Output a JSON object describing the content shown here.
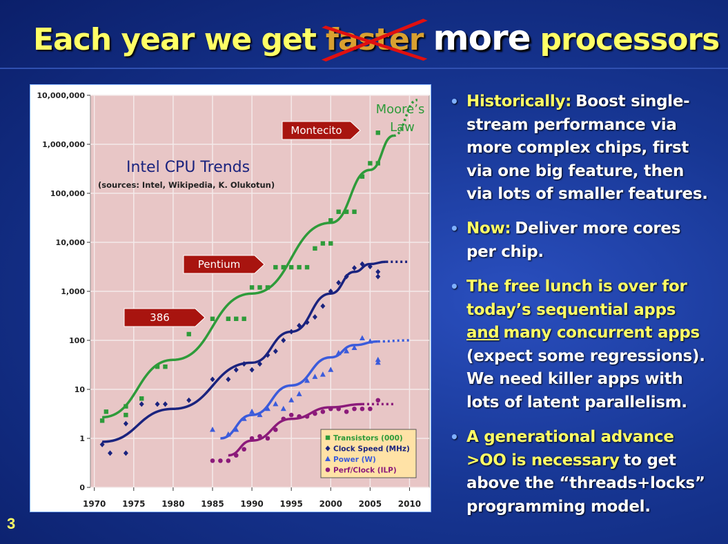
{
  "slide": {
    "title": [
      {
        "text": "Each year we get",
        "color": "#ffff66"
      },
      {
        "text": "faster",
        "color": "#d9a030",
        "struck": true
      },
      {
        "text": "more",
        "color": "#ffffff",
        "big": true
      },
      {
        "text": "processors",
        "color": "#ffff66"
      }
    ],
    "page_number": "3",
    "bullets": [
      {
        "lines": [
          [
            {
              "text": "Historically:",
              "color": "#ffff66"
            },
            {
              "text": "Boost single-",
              "color": "#ffffff"
            }
          ],
          [
            {
              "text": "stream performance via",
              "color": "#ffffff"
            }
          ],
          [
            {
              "text": "more complex chips, first",
              "color": "#ffffff"
            }
          ],
          [
            {
              "text": "via one big feature, then",
              "color": "#ffffff"
            }
          ],
          [
            {
              "text": "via lots of smaller features.",
              "color": "#ffffff"
            }
          ]
        ]
      },
      {
        "lines": [
          [
            {
              "text": "Now:",
              "color": "#ffff66"
            },
            {
              "text": "Deliver more cores",
              "color": "#ffffff"
            }
          ],
          [
            {
              "text": "per chip.",
              "color": "#ffffff"
            }
          ]
        ]
      },
      {
        "lines": [
          [
            {
              "text": "The free lunch is over for",
              "color": "#ffff66"
            }
          ],
          [
            {
              "text": "today’s sequential apps",
              "color": "#ffff66"
            }
          ],
          [
            {
              "text": "and",
              "color": "#ffff66",
              "underline": true
            },
            {
              "text": "many concurrent apps",
              "color": "#ffff66"
            }
          ],
          [
            {
              "text": "(expect some regressions).",
              "color": "#ffffff"
            }
          ],
          [
            {
              "text": "We need killer apps with",
              "color": "#ffffff"
            }
          ],
          [
            {
              "text": "lots of latent parallelism.",
              "color": "#ffffff"
            }
          ]
        ]
      },
      {
        "lines": [
          [
            {
              "text": "A generational advance",
              "color": "#ffff66"
            }
          ],
          [
            {
              "text": ">OO is necessary",
              "color": "#ffff66"
            },
            {
              "text": "to get",
              "color": "#ffffff"
            }
          ],
          [
            {
              "text": "above the “threads+locks”",
              "color": "#ffffff"
            }
          ],
          [
            {
              "text": "programming model.",
              "color": "#ffffff"
            }
          ]
        ]
      }
    ]
  },
  "chart_data": {
    "type": "scatter",
    "title": "Intel CPU Trends",
    "subtitle": "(sources: Intel, Wikipedia, K. Olukotun)",
    "log_scale_y": true,
    "grid": true,
    "legend": "lower right",
    "xlim": [
      1969.5,
      2012.5
    ],
    "xticks": [
      1970,
      1975,
      1980,
      1985,
      1990,
      1995,
      2000,
      2005,
      2010
    ],
    "ylim": [
      0.1,
      10000000
    ],
    "yticks": [
      {
        "value": 0.1,
        "label": "0"
      },
      1,
      10,
      100,
      {
        "value": 1000,
        "label": "1,000"
      },
      {
        "value": 10000,
        "label": "10,000"
      },
      {
        "value": 100000,
        "label": "100,000"
      },
      {
        "value": 1000000,
        "label": "1,000,000"
      },
      {
        "value": 10000000,
        "label": "10,000,000"
      }
    ],
    "annotations": {
      "moores_law": [
        "Moore’s",
        "Law"
      ],
      "arrows": [
        "Montecito",
        "Pentium",
        "386"
      ]
    },
    "series": [
      {
        "name": "Transistors (000)",
        "color": "#2e9b3a",
        "marker": "square",
        "x": [
          1971,
          1971.5,
          1974,
          1974,
          1976,
          1978,
          1979,
          1982,
          1985,
          1987,
          1988,
          1989,
          1990,
          1991,
          1992,
          1993,
          1994,
          1995,
          1996,
          1997,
          1998,
          1999,
          2000,
          2000,
          2001,
          2002,
          2003,
          2004,
          2005,
          2006,
          2006
        ],
        "values": [
          2.3,
          3.5,
          4.5,
          3,
          6.5,
          29,
          29,
          134,
          275,
          275,
          275,
          275,
          1200,
          1200,
          1200,
          3100,
          3100,
          3100,
          3100,
          3100,
          7500,
          9500,
          9500,
          28000,
          42000,
          42000,
          42000,
          220000,
          410000,
          410000,
          1720000
        ],
        "trend": {
          "x": [
            1971,
            1980,
            1990,
            2000,
            2005,
            2008
          ],
          "values": [
            2.7,
            40,
            900,
            25000,
            300000,
            1500000
          ]
        },
        "projection": {
          "x": [
            2008,
            2011
          ],
          "values": [
            1500000,
            8000000
          ]
        }
      },
      {
        "name": "Clock Speed (MHz)",
        "color": "#1a237e",
        "marker": "diamond",
        "x": [
          1971,
          1972,
          1974,
          1974,
          1976,
          1978,
          1979,
          1982,
          1985,
          1987,
          1988,
          1989,
          1990,
          1991,
          1992,
          1993,
          1994,
          1995,
          1996,
          1997,
          1998,
          1999,
          2000,
          2001,
          2002,
          2003,
          2004,
          2005,
          2006,
          2006
        ],
        "values": [
          0.75,
          0.5,
          2,
          0.5,
          5,
          5,
          5,
          6,
          16,
          16,
          25,
          33,
          25,
          33,
          50,
          60,
          100,
          150,
          200,
          233,
          300,
          500,
          1000,
          1500,
          2000,
          3000,
          3600,
          3200,
          2500,
          2000
        ],
        "trend": {
          "x": [
            1971,
            1980,
            1990,
            1995,
            2000,
            2003,
            2005,
            2007
          ],
          "values": [
            0.85,
            4,
            35,
            150,
            900,
            2500,
            3600,
            4000
          ]
        },
        "projection": {
          "x": [
            2007,
            2010
          ],
          "values": [
            4000,
            4000
          ]
        }
      },
      {
        "name": "Power (W)",
        "color": "#3b5bdb",
        "marker": "triangle",
        "x": [
          1985,
          1987,
          1988,
          1989,
          1990,
          1991,
          1992,
          1993,
          1994,
          1995,
          1996,
          1997,
          1998,
          1999,
          2000,
          2001,
          2002,
          2003,
          2004,
          2005,
          2006,
          2006
        ],
        "values": [
          1.5,
          1.2,
          1.5,
          2.5,
          3.5,
          3,
          4,
          5,
          4,
          6,
          8,
          15,
          18,
          20,
          25,
          55,
          60,
          70,
          110,
          95,
          40,
          35
        ],
        "trend": {
          "x": [
            1986,
            1990,
            1995,
            2000,
            2003,
            2006
          ],
          "values": [
            1,
            3,
            12,
            45,
            80,
            95
          ]
        },
        "projection": {
          "x": [
            2006,
            2010
          ],
          "values": [
            95,
            100
          ]
        }
      },
      {
        "name": "Perf/Clock (ILP)",
        "color": "#8b1a7a",
        "marker": "circle",
        "x": [
          1985,
          1986,
          1987,
          1988,
          1989,
          1990,
          1991,
          1992,
          1993,
          1994,
          1995,
          1996,
          1997,
          1998,
          1999,
          2000,
          2001,
          2002,
          2003,
          2004,
          2005,
          2006
        ],
        "values": [
          0.35,
          0.35,
          0.35,
          0.45,
          0.6,
          1,
          1.1,
          1,
          1.5,
          2.5,
          3,
          2.8,
          2.8,
          3.2,
          3.5,
          4,
          4,
          3.5,
          4,
          4,
          4,
          6
        ],
        "trend": {
          "x": [
            1987,
            1990,
            1995,
            2000,
            2004
          ],
          "values": [
            0.45,
            0.9,
            2.5,
            4.3,
            5
          ]
        },
        "projection": {
          "x": [
            2004,
            2008
          ],
          "values": [
            5,
            5
          ]
        }
      }
    ]
  }
}
